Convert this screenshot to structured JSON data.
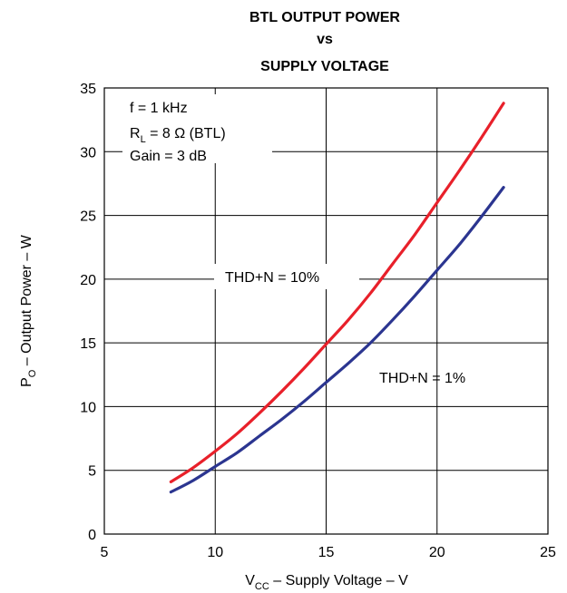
{
  "chart_data": {
    "type": "line",
    "title_lines": [
      "BTL OUTPUT POWER",
      "vs",
      "SUPPLY VOLTAGE"
    ],
    "xlabel": {
      "main": "V",
      "sub": "CC",
      "rest": " – Supply Voltage – V"
    },
    "ylabel": {
      "main": "P",
      "sub": "O",
      "rest": " – Output Power – W"
    },
    "xlim": [
      5,
      25
    ],
    "ylim": [
      0,
      35
    ],
    "xticks": [
      5,
      10,
      15,
      20,
      25
    ],
    "yticks": [
      0,
      5,
      10,
      15,
      20,
      25,
      30,
      35
    ],
    "grid": true,
    "conditions": {
      "line1": "f = 1 kHz",
      "line2_main": "R",
      "line2_sub": "L",
      "line2_rest": " = 8 Ω (BTL)",
      "line3": "Gain = 3 dB"
    },
    "series": [
      {
        "name": "THD+N = 10%",
        "color": "#e8202a",
        "x": [
          8,
          9,
          10,
          11,
          12,
          13,
          14,
          15,
          16,
          17,
          18,
          19,
          20,
          21,
          22,
          23
        ],
        "y": [
          4.1,
          5.2,
          6.5,
          7.9,
          9.5,
          11.2,
          13.0,
          14.9,
          16.8,
          18.9,
          21.2,
          23.5,
          26.0,
          28.5,
          31.1,
          33.8
        ]
      },
      {
        "name": "THD+N = 1%",
        "color": "#2b3590",
        "x": [
          8,
          9,
          10,
          11,
          12,
          13,
          14,
          15,
          16,
          17,
          18,
          19,
          20,
          21,
          22,
          23
        ],
        "y": [
          3.3,
          4.2,
          5.3,
          6.4,
          7.7,
          9.0,
          10.4,
          11.9,
          13.4,
          15.0,
          16.8,
          18.7,
          20.7,
          22.7,
          24.9,
          27.2
        ]
      }
    ]
  }
}
